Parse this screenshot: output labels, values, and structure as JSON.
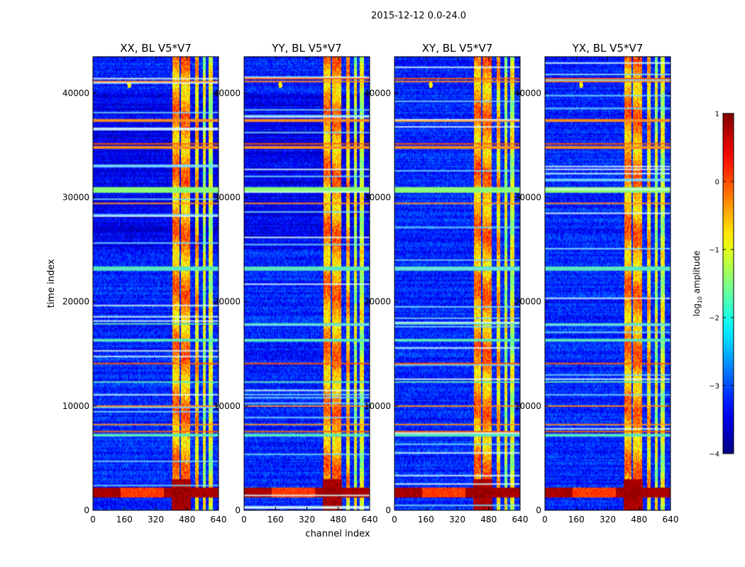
{
  "figure": {
    "suptitle": "2015-12-12 0.0-24.0"
  },
  "chart_data": {
    "type": "heatmap",
    "xlabel": "channel index",
    "ylabel": "time index",
    "x_ticks": [
      0,
      160,
      320,
      480,
      640
    ],
    "x_tick_labels": [
      "0",
      "160",
      "320",
      "480",
      "640"
    ],
    "y_ticks": [
      0,
      10000,
      20000,
      30000,
      40000
    ],
    "y_tick_labels": [
      "0",
      "10000",
      "20000",
      "30000",
      "40000"
    ],
    "xlim": [
      0,
      640
    ],
    "ylim": [
      0,
      43500
    ],
    "colormap": "jet",
    "panels": [
      {
        "title": "XX, BL V5*V7",
        "polarization": "XX"
      },
      {
        "title": "YY, BL V5*V7",
        "polarization": "YY"
      },
      {
        "title": "XY, BL V5*V7",
        "polarization": "XY"
      },
      {
        "title": "YX, BL V5*V7",
        "polarization": "YX"
      }
    ],
    "colorbar": {
      "label": "log10 amplitude",
      "label_main": "log",
      "label_sub": "10",
      "label_tail": " amplitude",
      "range": [
        -4,
        1
      ],
      "ticks": [
        1,
        0,
        -1,
        -2,
        -3,
        -4
      ],
      "tick_labels": [
        "1",
        "0",
        "−1",
        "−2",
        "−3",
        "−4"
      ]
    },
    "features": {
      "bright_channel_bands": [
        [
          405,
          440
        ],
        [
          450,
          495
        ],
        [
          520,
          540
        ],
        [
          560,
          575
        ],
        [
          590,
          610
        ]
      ],
      "background_level": -3.2,
      "band_level": -0.6,
      "hot_time_band": [
        1200,
        2200
      ],
      "rfi_time_rows": [
        41500,
        41200,
        37500,
        35200,
        35000,
        29500,
        14200,
        10100,
        8300,
        7600
      ],
      "full_row_flags": [
        [
          30500,
          31000
        ],
        [
          23000,
          23400
        ],
        [
          17800,
          18000
        ],
        [
          16200,
          16400
        ],
        [
          12200,
          12400
        ],
        [
          7100,
          7300
        ]
      ],
      "spot": {
        "channel": 185,
        "time": 40800
      }
    },
    "series": [
      {
        "name": "XX, BL V5*V7",
        "seed": 11,
        "values": "heatmap intensities (log10 amplitude) rendered procedurally"
      },
      {
        "name": "YY, BL V5*V7",
        "seed": 23,
        "values": "heatmap intensities (log10 amplitude) rendered procedurally"
      },
      {
        "name": "XY, BL V5*V7",
        "seed": 37,
        "values": "heatmap intensities (log10 amplitude) rendered procedurally"
      },
      {
        "name": "YX, BL V5*V7",
        "seed": 53,
        "values": "heatmap intensities (log10 amplitude) rendered procedurally"
      }
    ]
  }
}
